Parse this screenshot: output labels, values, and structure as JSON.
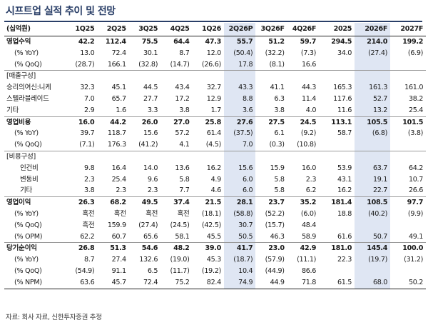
{
  "title": "시프트업 실적 추이 및 전망",
  "header": [
    "(십억원)",
    "1Q25",
    "2Q25",
    "3Q25",
    "4Q25",
    "1Q26",
    "2Q26P",
    "3Q26F",
    "4Q26F",
    "2025",
    "2026F",
    "2027F"
  ],
  "rows": [
    {
      "label": "영업수익",
      "style": "bold",
      "sec": true,
      "values": [
        "42.2",
        "112.4",
        "75.5",
        "64.4",
        "47.3",
        "55.7",
        "51.2",
        "59.7",
        "294.5",
        "214.0",
        "199.2"
      ]
    },
    {
      "label": "(% YoY)",
      "indent": 1,
      "values": [
        "13.0",
        "72.4",
        "30.1",
        "8.7",
        "12.0",
        "(50.4)",
        "(32.2)",
        "(7.3)",
        "34.0",
        "(27.4)",
        "(6.9)"
      ]
    },
    {
      "label": "(% QoQ)",
      "indent": 1,
      "values": [
        "(28.7)",
        "166.1",
        "(32.8)",
        "(14.7)",
        "(26.6)",
        "17.8",
        "(8.1)",
        "16.6",
        "",
        "",
        ""
      ]
    },
    {
      "label": "[매출구성]",
      "sec": true,
      "values": [
        "",
        "",
        "",
        "",
        "",
        "",
        "",
        "",
        "",
        "",
        ""
      ]
    },
    {
      "label": "승리의여신:니케",
      "values": [
        "32.3",
        "45.1",
        "44.5",
        "43.4",
        "32.7",
        "43.3",
        "41.1",
        "44.3",
        "165.3",
        "161.3",
        "161.0"
      ]
    },
    {
      "label": "스텔라블레이드",
      "values": [
        "7.0",
        "65.7",
        "27.7",
        "17.2",
        "12.9",
        "8.8",
        "6.3",
        "11.4",
        "117.6",
        "52.7",
        "38.2"
      ]
    },
    {
      "label": "기타",
      "values": [
        "2.9",
        "1.6",
        "3.3",
        "3.8",
        "1.7",
        "3.6",
        "3.8",
        "4.0",
        "11.6",
        "13.2",
        "25.4"
      ]
    },
    {
      "label": "영업비용",
      "style": "bold",
      "sec": true,
      "values": [
        "16.0",
        "44.2",
        "26.0",
        "27.0",
        "25.8",
        "27.6",
        "27.5",
        "24.5",
        "113.1",
        "105.5",
        "101.5"
      ]
    },
    {
      "label": "(% YoY)",
      "indent": 1,
      "values": [
        "39.7",
        "118.7",
        "15.6",
        "57.2",
        "61.4",
        "(37.5)",
        "6.1",
        "(9.2)",
        "58.7",
        "(6.8)",
        "(3.8)"
      ]
    },
    {
      "label": "(% QoQ)",
      "indent": 1,
      "values": [
        "(7.1)",
        "176.3",
        "(41.2)",
        "4.1",
        "(4.5)",
        "7.0",
        "(0.3)",
        "(10.8)",
        "",
        "",
        ""
      ]
    },
    {
      "label": "[비용구성]",
      "sec": true,
      "values": [
        "",
        "",
        "",
        "",
        "",
        "",
        "",
        "",
        "",
        "",
        ""
      ]
    },
    {
      "label": "인건비",
      "indent": 2,
      "values": [
        "9.8",
        "16.4",
        "14.0",
        "13.6",
        "16.2",
        "15.6",
        "15.9",
        "16.0",
        "53.9",
        "63.7",
        "64.2"
      ]
    },
    {
      "label": "변동비",
      "indent": 2,
      "values": [
        "2.3",
        "25.4",
        "9.6",
        "5.8",
        "4.9",
        "6.0",
        "5.8",
        "2.3",
        "43.1",
        "19.1",
        "10.7"
      ]
    },
    {
      "label": "기타",
      "indent": 2,
      "values": [
        "3.8",
        "2.3",
        "2.3",
        "7.7",
        "4.6",
        "6.0",
        "5.8",
        "6.2",
        "16.2",
        "22.7",
        "26.6"
      ]
    },
    {
      "label": "영업이익",
      "style": "bold",
      "sec": true,
      "values": [
        "26.3",
        "68.2",
        "49.5",
        "37.4",
        "21.5",
        "28.1",
        "23.7",
        "35.2",
        "181.4",
        "108.5",
        "97.7"
      ]
    },
    {
      "label": "(% YoY)",
      "indent": 1,
      "values": [
        "흑전",
        "흑전",
        "흑전",
        "흑전",
        "(18.1)",
        "(58.8)",
        "(52.2)",
        "(6.0)",
        "18.8",
        "(40.2)",
        "(9.9)"
      ]
    },
    {
      "label": "(% QoQ)",
      "indent": 1,
      "values": [
        "흑전",
        "159.9",
        "(27.4)",
        "(24.5)",
        "(42.5)",
        "30.7",
        "(15.7)",
        "48.4",
        "",
        "",
        ""
      ]
    },
    {
      "label": "(% OPM)",
      "indent": 1,
      "values": [
        "62.2",
        "60.7",
        "65.6",
        "58.1",
        "45.5",
        "50.5",
        "46.3",
        "58.9",
        "61.6",
        "50.7",
        "49.1"
      ]
    },
    {
      "label": "당기순이익",
      "style": "bold",
      "sec": true,
      "values": [
        "26.8",
        "51.3",
        "54.6",
        "48.2",
        "39.0",
        "41.7",
        "23.0",
        "42.9",
        "181.0",
        "145.4",
        "100.0"
      ]
    },
    {
      "label": "(% YoY)",
      "indent": 1,
      "values": [
        "8.7",
        "27.4",
        "132.6",
        "(19.0)",
        "45.3",
        "(18.7)",
        "(57.9)",
        "(11.1)",
        "22.3",
        "(19.7)",
        "(31.2)"
      ]
    },
    {
      "label": "(% QoQ)",
      "indent": 1,
      "values": [
        "(54.9)",
        "91.1",
        "6.5",
        "(11.7)",
        "(19.2)",
        "10.4",
        "(44.9)",
        "86.6",
        "",
        "",
        ""
      ]
    },
    {
      "label": "(% NPM)",
      "indent": 1,
      "last": true,
      "values": [
        "63.6",
        "45.7",
        "72.4",
        "75.2",
        "82.4",
        "74.9",
        "44.9",
        "71.8",
        "61.5",
        "68.0",
        "50.2"
      ]
    }
  ],
  "highlight_columns": [
    "2Q26P",
    "2026F"
  ],
  "highlight_color": "#dfe6f3",
  "accent_color": "#2a3f68",
  "source": "자료: 회사 자료, 신한투자증권 추정"
}
